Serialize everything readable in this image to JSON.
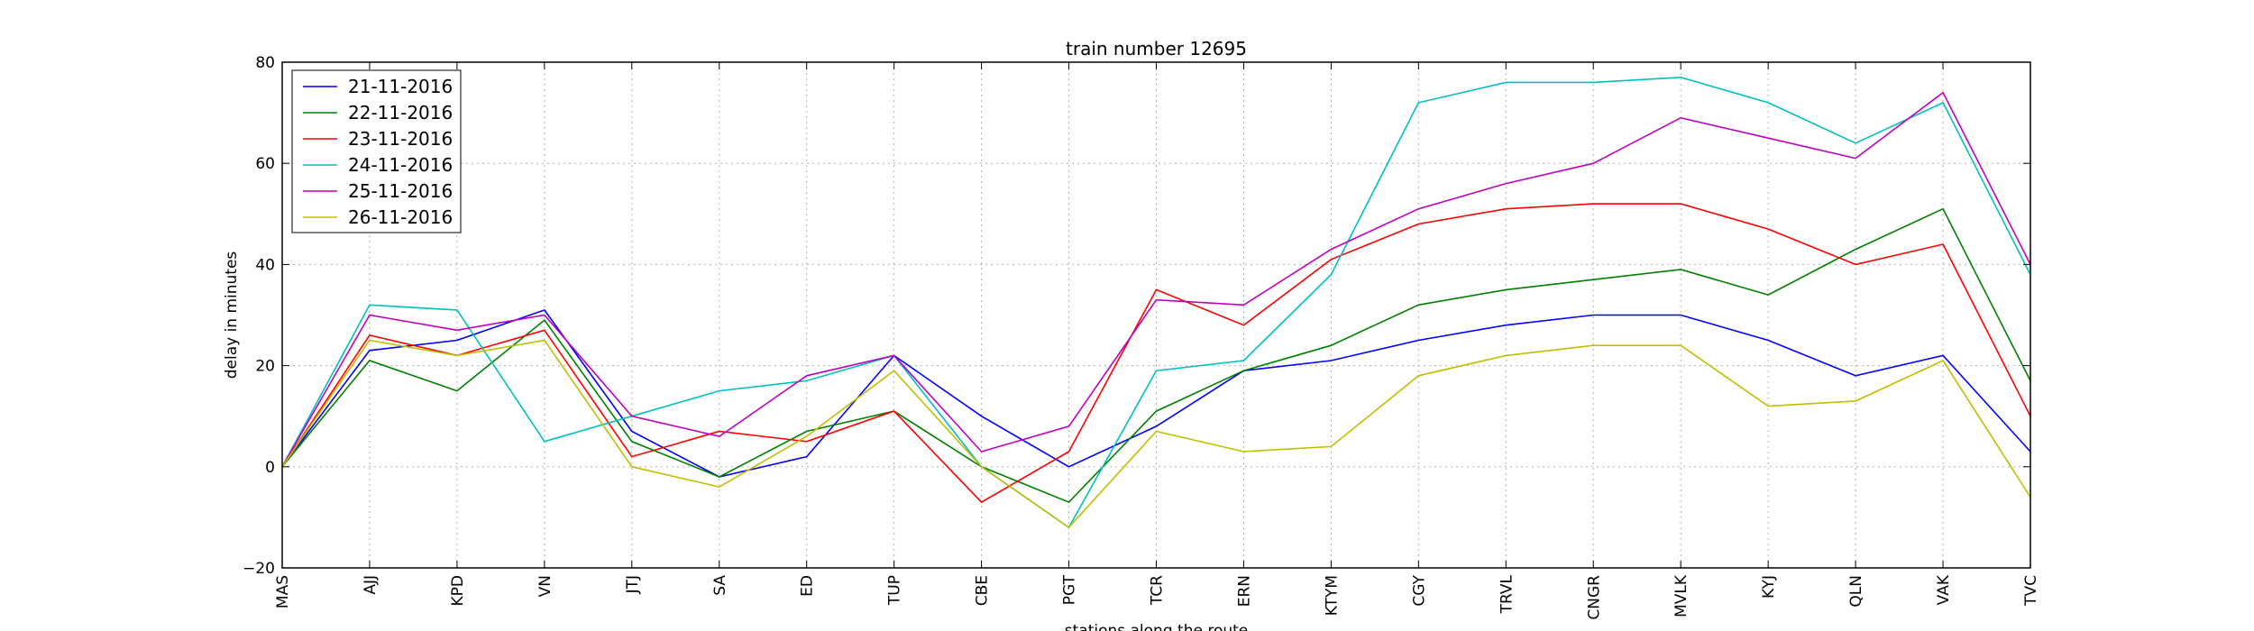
{
  "chart_data": {
    "type": "line",
    "title": "train number 12695",
    "xlabel": "stations along the route",
    "ylabel": "delay in minutes",
    "ylim": [
      -20,
      80
    ],
    "yticks": [
      -20,
      0,
      20,
      40,
      60,
      80
    ],
    "grid": true,
    "legend_position": "top-left",
    "categories": [
      "MAS",
      "AJJ",
      "KPD",
      "VN",
      "JTJ",
      "SA",
      "ED",
      "TUP",
      "CBE",
      "PGT",
      "TCR",
      "ERN",
      "KTYM",
      "CGY",
      "TRVL",
      "CNGR",
      "MVLK",
      "KYJ",
      "QLN",
      "VAK",
      "TVC"
    ],
    "series": [
      {
        "name": "21-11-2016",
        "color": "#0000ff",
        "values": [
          0,
          23,
          25,
          31,
          7,
          -2,
          2,
          22,
          10,
          0,
          8,
          19,
          21,
          25,
          28,
          30,
          30,
          25,
          18,
          22,
          3
        ]
      },
      {
        "name": "22-11-2016",
        "color": "#008000",
        "values": [
          0,
          21,
          15,
          29,
          5,
          -2,
          7,
          11,
          0,
          -7,
          11,
          19,
          24,
          32,
          35,
          37,
          39,
          34,
          43,
          51,
          17
        ]
      },
      {
        "name": "23-11-2016",
        "color": "#ff0000",
        "values": [
          0,
          26,
          22,
          27,
          2,
          7,
          5,
          11,
          -7,
          3,
          35,
          28,
          41,
          48,
          51,
          52,
          52,
          47,
          40,
          44,
          10
        ]
      },
      {
        "name": "24-11-2016",
        "color": "#00bfbf",
        "values": [
          0,
          32,
          31,
          5,
          10,
          15,
          17,
          22,
          0,
          -12,
          19,
          21,
          38,
          72,
          76,
          76,
          77,
          72,
          64,
          72,
          38
        ]
      },
      {
        "name": "25-11-2016",
        "color": "#bf00bf",
        "values": [
          0,
          30,
          27,
          30,
          10,
          6,
          18,
          22,
          3,
          8,
          33,
          32,
          43,
          51,
          56,
          60,
          69,
          65,
          61,
          74,
          40
        ]
      },
      {
        "name": "26-11-2016",
        "color": "#bfbf00",
        "values": [
          0,
          25,
          22,
          25,
          0,
          -4,
          6,
          19,
          0,
          -12,
          7,
          3,
          4,
          18,
          22,
          24,
          24,
          12,
          13,
          21,
          -6
        ]
      }
    ]
  }
}
